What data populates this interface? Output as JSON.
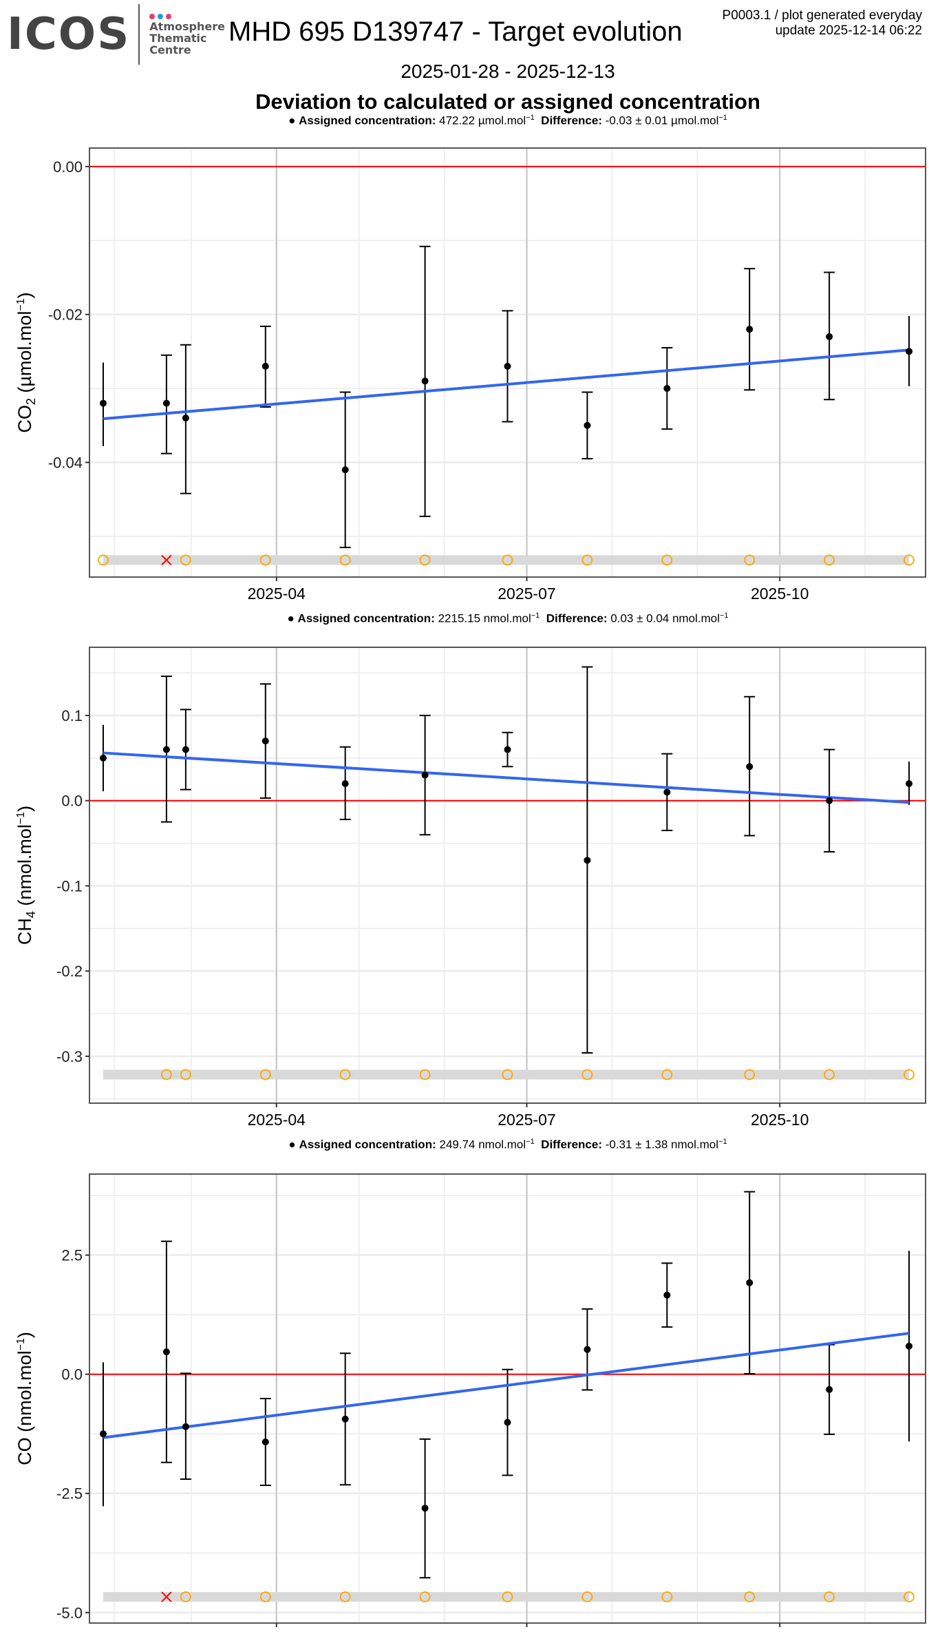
{
  "header": {
    "logo_text": "ICOS",
    "logo_subtitle": [
      "Atmosphere",
      "Thematic",
      "Centre"
    ],
    "logo_dot_colors": [
      "#e63c74",
      "#1e9be8",
      "#e63c74"
    ],
    "title": "MHD 695 D139747 - Target evolution",
    "meta_line1": "P0003.1 / plot generated everyday",
    "meta_line2": "update  2025-12-14 06:22",
    "date_range": "2025-01-28 - 2025-12-13",
    "subtitle": "Deviation to calculated or assigned concentration"
  },
  "colors": {
    "point": "#000000",
    "trend": "#3366ee",
    "zero_line": "#ff0000",
    "flag_ok": "#ffa500",
    "flag_bad": "#ff0000",
    "flag_band": "#d9d9d9",
    "grid": "#ebebeb",
    "grid_major_x": "#cccccc"
  },
  "chart_data": [
    {
      "type": "scatter",
      "species": "CO2",
      "ylabel": "CO2 (µmol.mol-1)",
      "ylabel_main": "CO",
      "ylabel_sub": "2",
      "ylabel_unit": " (µmol.mol",
      "legend": {
        "label": "Assigned concentration:",
        "assigned": "472.22 µmol.mol",
        "diff_label": "Difference:",
        "diff": "-0.03 ± 0.01 µmol.mol"
      },
      "ylim": [
        -0.0555,
        0.0025
      ],
      "yticks": [
        0.0,
        -0.02,
        -0.04
      ],
      "ytick_labels": [
        "0.00",
        "-0.02",
        "-0.04"
      ],
      "flag_y": -0.0532,
      "points": [
        {
          "date": "2025-01-28",
          "y": -0.032,
          "lo": -0.0378,
          "hi": -0.0265,
          "cap": false,
          "flag": "ok"
        },
        {
          "date": "2025-02-20",
          "y": -0.032,
          "lo": -0.0388,
          "hi": -0.0255,
          "cap": true,
          "flag": "bad"
        },
        {
          "date": "2025-02-27",
          "y": -0.034,
          "lo": -0.0442,
          "hi": -0.0241,
          "cap": true,
          "flag": "ok"
        },
        {
          "date": "2025-03-28",
          "y": -0.027,
          "lo": -0.0325,
          "hi": -0.0216,
          "cap": true,
          "flag": "ok"
        },
        {
          "date": "2025-04-26",
          "y": -0.041,
          "lo": -0.0515,
          "hi": -0.0305,
          "cap": true,
          "flag": "ok"
        },
        {
          "date": "2025-05-25",
          "y": -0.029,
          "lo": -0.0473,
          "hi": -0.0108,
          "cap": true,
          "flag": "ok"
        },
        {
          "date": "2025-06-24",
          "y": -0.027,
          "lo": -0.0345,
          "hi": -0.0195,
          "cap": true,
          "flag": "ok"
        },
        {
          "date": "2025-07-23",
          "y": -0.035,
          "lo": -0.0395,
          "hi": -0.0305,
          "cap": true,
          "flag": "ok"
        },
        {
          "date": "2025-08-21",
          "y": -0.03,
          "lo": -0.0355,
          "hi": -0.0245,
          "cap": true,
          "flag": "ok"
        },
        {
          "date": "2025-09-20",
          "y": -0.022,
          "lo": -0.0302,
          "hi": -0.0138,
          "cap": true,
          "flag": "ok"
        },
        {
          "date": "2025-10-19",
          "y": -0.023,
          "lo": -0.0315,
          "hi": -0.0143,
          "cap": true,
          "flag": "ok"
        },
        {
          "date": "2025-11-17",
          "y": -0.025,
          "lo": -0.0297,
          "hi": -0.0202,
          "cap": false,
          "flag": "ok"
        }
      ],
      "trend": {
        "start": [
          "2025-01-28",
          -0.0341
        ],
        "end": [
          "2025-11-17",
          -0.0248
        ]
      }
    },
    {
      "type": "scatter",
      "species": "CH4",
      "ylabel": "CH4 (nmol.mol-1)",
      "ylabel_main": "CH",
      "ylabel_sub": "4",
      "ylabel_unit": " (nmol.mol",
      "legend": {
        "label": "Assigned concentration:",
        "assigned": "2215.15 nmol.mol",
        "diff_label": "Difference:",
        "diff": "0.03 ± 0.04 nmol.mol"
      },
      "ylim": [
        -0.355,
        0.18
      ],
      "yticks": [
        0.1,
        0.0,
        -0.1,
        -0.2,
        -0.3
      ],
      "ytick_labels": [
        "0.1",
        "0.0",
        "-0.1",
        "-0.2",
        "-0.3"
      ],
      "flag_y": -0.3215,
      "points": [
        {
          "date": "2025-01-28",
          "y": 0.05,
          "lo": 0.011,
          "hi": 0.089,
          "cap": false,
          "flag": "none"
        },
        {
          "date": "2025-02-20",
          "y": 0.06,
          "lo": -0.025,
          "hi": 0.146,
          "cap": true,
          "flag": "ok"
        },
        {
          "date": "2025-02-27",
          "y": 0.06,
          "lo": 0.013,
          "hi": 0.107,
          "cap": true,
          "flag": "ok"
        },
        {
          "date": "2025-03-28",
          "y": 0.07,
          "lo": 0.003,
          "hi": 0.137,
          "cap": true,
          "flag": "ok"
        },
        {
          "date": "2025-04-26",
          "y": 0.02,
          "lo": -0.022,
          "hi": 0.063,
          "cap": true,
          "flag": "ok"
        },
        {
          "date": "2025-05-25",
          "y": 0.03,
          "lo": -0.04,
          "hi": 0.1,
          "cap": true,
          "flag": "ok"
        },
        {
          "date": "2025-06-24",
          "y": 0.06,
          "lo": 0.04,
          "hi": 0.08,
          "cap": true,
          "flag": "ok"
        },
        {
          "date": "2025-07-23",
          "y": -0.07,
          "lo": -0.296,
          "hi": 0.157,
          "cap": true,
          "flag": "ok"
        },
        {
          "date": "2025-08-21",
          "y": 0.01,
          "lo": -0.035,
          "hi": 0.055,
          "cap": true,
          "flag": "ok"
        },
        {
          "date": "2025-09-20",
          "y": 0.04,
          "lo": -0.041,
          "hi": 0.122,
          "cap": true,
          "flag": "ok"
        },
        {
          "date": "2025-10-19",
          "y": 0.0,
          "lo": -0.06,
          "hi": 0.06,
          "cap": true,
          "flag": "ok"
        },
        {
          "date": "2025-11-17",
          "y": 0.02,
          "lo": -0.005,
          "hi": 0.046,
          "cap": false,
          "flag": "ok"
        }
      ],
      "trend": {
        "start": [
          "2025-01-28",
          0.056
        ],
        "end": [
          "2025-11-17",
          -0.002
        ]
      }
    },
    {
      "type": "scatter",
      "species": "CO",
      "ylabel": "CO (nmol.mol-1)",
      "ylabel_main": "CO",
      "ylabel_sub": "",
      "ylabel_unit": " (nmol.mol",
      "legend": {
        "label": "Assigned concentration:",
        "assigned": "249.74 nmol.mol",
        "diff_label": "Difference:",
        "diff": "-0.31 ± 1.38 nmol.mol"
      },
      "ylim": [
        -5.22,
        4.2
      ],
      "yticks": [
        2.5,
        0.0,
        -2.5,
        -5.0
      ],
      "ytick_labels": [
        "2.5",
        "0.0",
        "-2.5",
        "-5.0"
      ],
      "flag_y": -4.67,
      "points": [
        {
          "date": "2025-01-28",
          "y": -1.25,
          "lo": -2.77,
          "hi": 0.25,
          "cap": false,
          "flag": "none"
        },
        {
          "date": "2025-02-20",
          "y": 0.47,
          "lo": -1.85,
          "hi": 2.79,
          "cap": true,
          "flag": "bad"
        },
        {
          "date": "2025-02-27",
          "y": -1.1,
          "lo": -2.2,
          "hi": 0.02,
          "cap": true,
          "flag": "ok"
        },
        {
          "date": "2025-03-28",
          "y": -1.42,
          "lo": -2.33,
          "hi": -0.51,
          "cap": true,
          "flag": "ok"
        },
        {
          "date": "2025-04-26",
          "y": -0.94,
          "lo": -2.32,
          "hi": 0.44,
          "cap": true,
          "flag": "ok"
        },
        {
          "date": "2025-05-25",
          "y": -2.81,
          "lo": -4.27,
          "hi": -1.36,
          "cap": true,
          "flag": "ok"
        },
        {
          "date": "2025-06-24",
          "y": -1.01,
          "lo": -2.12,
          "hi": 0.1,
          "cap": true,
          "flag": "ok"
        },
        {
          "date": "2025-07-23",
          "y": 0.52,
          "lo": -0.33,
          "hi": 1.37,
          "cap": true,
          "flag": "ok"
        },
        {
          "date": "2025-08-21",
          "y": 1.66,
          "lo": 0.99,
          "hi": 2.33,
          "cap": true,
          "flag": "ok"
        },
        {
          "date": "2025-09-20",
          "y": 1.92,
          "lo": 0.01,
          "hi": 3.83,
          "cap": true,
          "flag": "ok"
        },
        {
          "date": "2025-10-19",
          "y": -0.32,
          "lo": -1.26,
          "hi": 0.62,
          "cap": true,
          "flag": "ok"
        },
        {
          "date": "2025-11-17",
          "y": 0.59,
          "lo": -1.41,
          "hi": 2.59,
          "cap": false,
          "flag": "ok"
        }
      ],
      "trend": {
        "start": [
          "2025-01-28",
          -1.33
        ],
        "end": [
          "2025-11-17",
          0.86
        ]
      }
    }
  ],
  "x_axis": {
    "range": [
      "2025-01-23",
      "2025-11-23"
    ],
    "major_ticks": [
      "2025-04-01",
      "2025-07-01",
      "2025-10-01"
    ],
    "tick_labels": [
      "2025-04",
      "2025-07",
      "2025-10"
    ],
    "minor_ticks": [
      "2025-02-01",
      "2025-03-01",
      "2025-05-01",
      "2025-06-01",
      "2025-08-01",
      "2025-09-01",
      "2025-11-01"
    ]
  }
}
